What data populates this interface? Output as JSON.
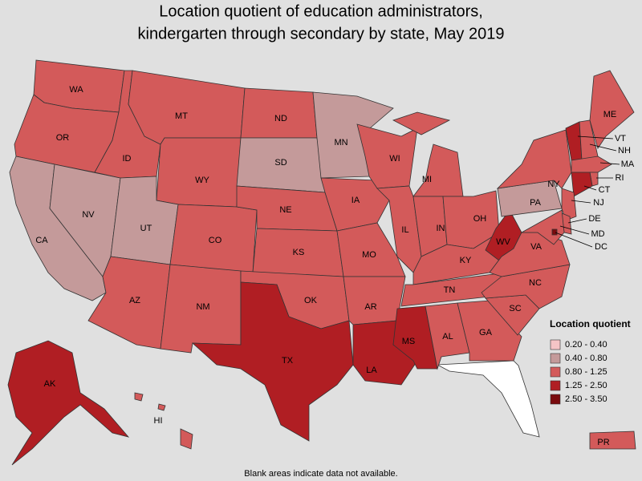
{
  "title": [
    "Location quotient of education administrators,",
    "kindergarten through secondary by state, May 2019"
  ],
  "legend": {
    "title": "Location quotient",
    "items": [
      {
        "label": "0.20 - 0.40",
        "color": "#f5c4c6"
      },
      {
        "label": "0.40 - 0.80",
        "color": "#c49a9a"
      },
      {
        "label": "0.80 - 1.25",
        "color": "#d35a5a"
      },
      {
        "label": "1.25 - 2.50",
        "color": "#b01e23"
      },
      {
        "label": "2.50 - 3.50",
        "color": "#7a0b0e"
      }
    ]
  },
  "note": "Blank areas indicate data not available.",
  "states": [
    {
      "label": "WA",
      "bin": 2
    },
    {
      "label": "OR",
      "bin": 2
    },
    {
      "label": "CA",
      "bin": 1
    },
    {
      "label": "NV",
      "bin": 1
    },
    {
      "label": "ID",
      "bin": 2
    },
    {
      "label": "MT",
      "bin": 2
    },
    {
      "label": "WY",
      "bin": 2
    },
    {
      "label": "UT",
      "bin": 1
    },
    {
      "label": "AZ",
      "bin": 2
    },
    {
      "label": "CO",
      "bin": 2
    },
    {
      "label": "NM",
      "bin": 2
    },
    {
      "label": "ND",
      "bin": 2
    },
    {
      "label": "SD",
      "bin": 1
    },
    {
      "label": "NE",
      "bin": 2
    },
    {
      "label": "KS",
      "bin": 2
    },
    {
      "label": "OK",
      "bin": 2
    },
    {
      "label": "TX",
      "bin": 3
    },
    {
      "label": "MN",
      "bin": 1
    },
    {
      "label": "IA",
      "bin": 2
    },
    {
      "label": "MO",
      "bin": 2
    },
    {
      "label": "AR",
      "bin": 2
    },
    {
      "label": "LA",
      "bin": 3
    },
    {
      "label": "WI",
      "bin": 2
    },
    {
      "label": "IL",
      "bin": 2
    },
    {
      "label": "MS",
      "bin": 3
    },
    {
      "label": "MI",
      "bin": 2
    },
    {
      "label": "IN",
      "bin": 2
    },
    {
      "label": "KY",
      "bin": 2
    },
    {
      "label": "TN",
      "bin": 2
    },
    {
      "label": "AL",
      "bin": 2
    },
    {
      "label": "OH",
      "bin": 2
    },
    {
      "label": "WV",
      "bin": 3
    },
    {
      "label": "GA",
      "bin": 2
    },
    {
      "label": "SC",
      "bin": 2
    },
    {
      "label": "NC",
      "bin": 2
    },
    {
      "label": "VA",
      "bin": 2
    },
    {
      "label": "PA",
      "bin": 1
    },
    {
      "label": "NY",
      "bin": 2
    },
    {
      "label": "VT",
      "bin": 3
    },
    {
      "label": "NH",
      "bin": 2
    },
    {
      "label": "ME",
      "bin": 2
    },
    {
      "label": "MA",
      "bin": 2
    },
    {
      "label": "RI",
      "bin": 2
    },
    {
      "label": "CT",
      "bin": 3
    },
    {
      "label": "NJ",
      "bin": 2
    },
    {
      "label": "DE",
      "bin": 2
    },
    {
      "label": "MD",
      "bin": 2
    },
    {
      "label": "DC",
      "bin": 4
    },
    {
      "label": "AK",
      "bin": 3
    },
    {
      "label": "HI",
      "bin": 2
    },
    {
      "label": "PR",
      "bin": 2
    }
  ]
}
